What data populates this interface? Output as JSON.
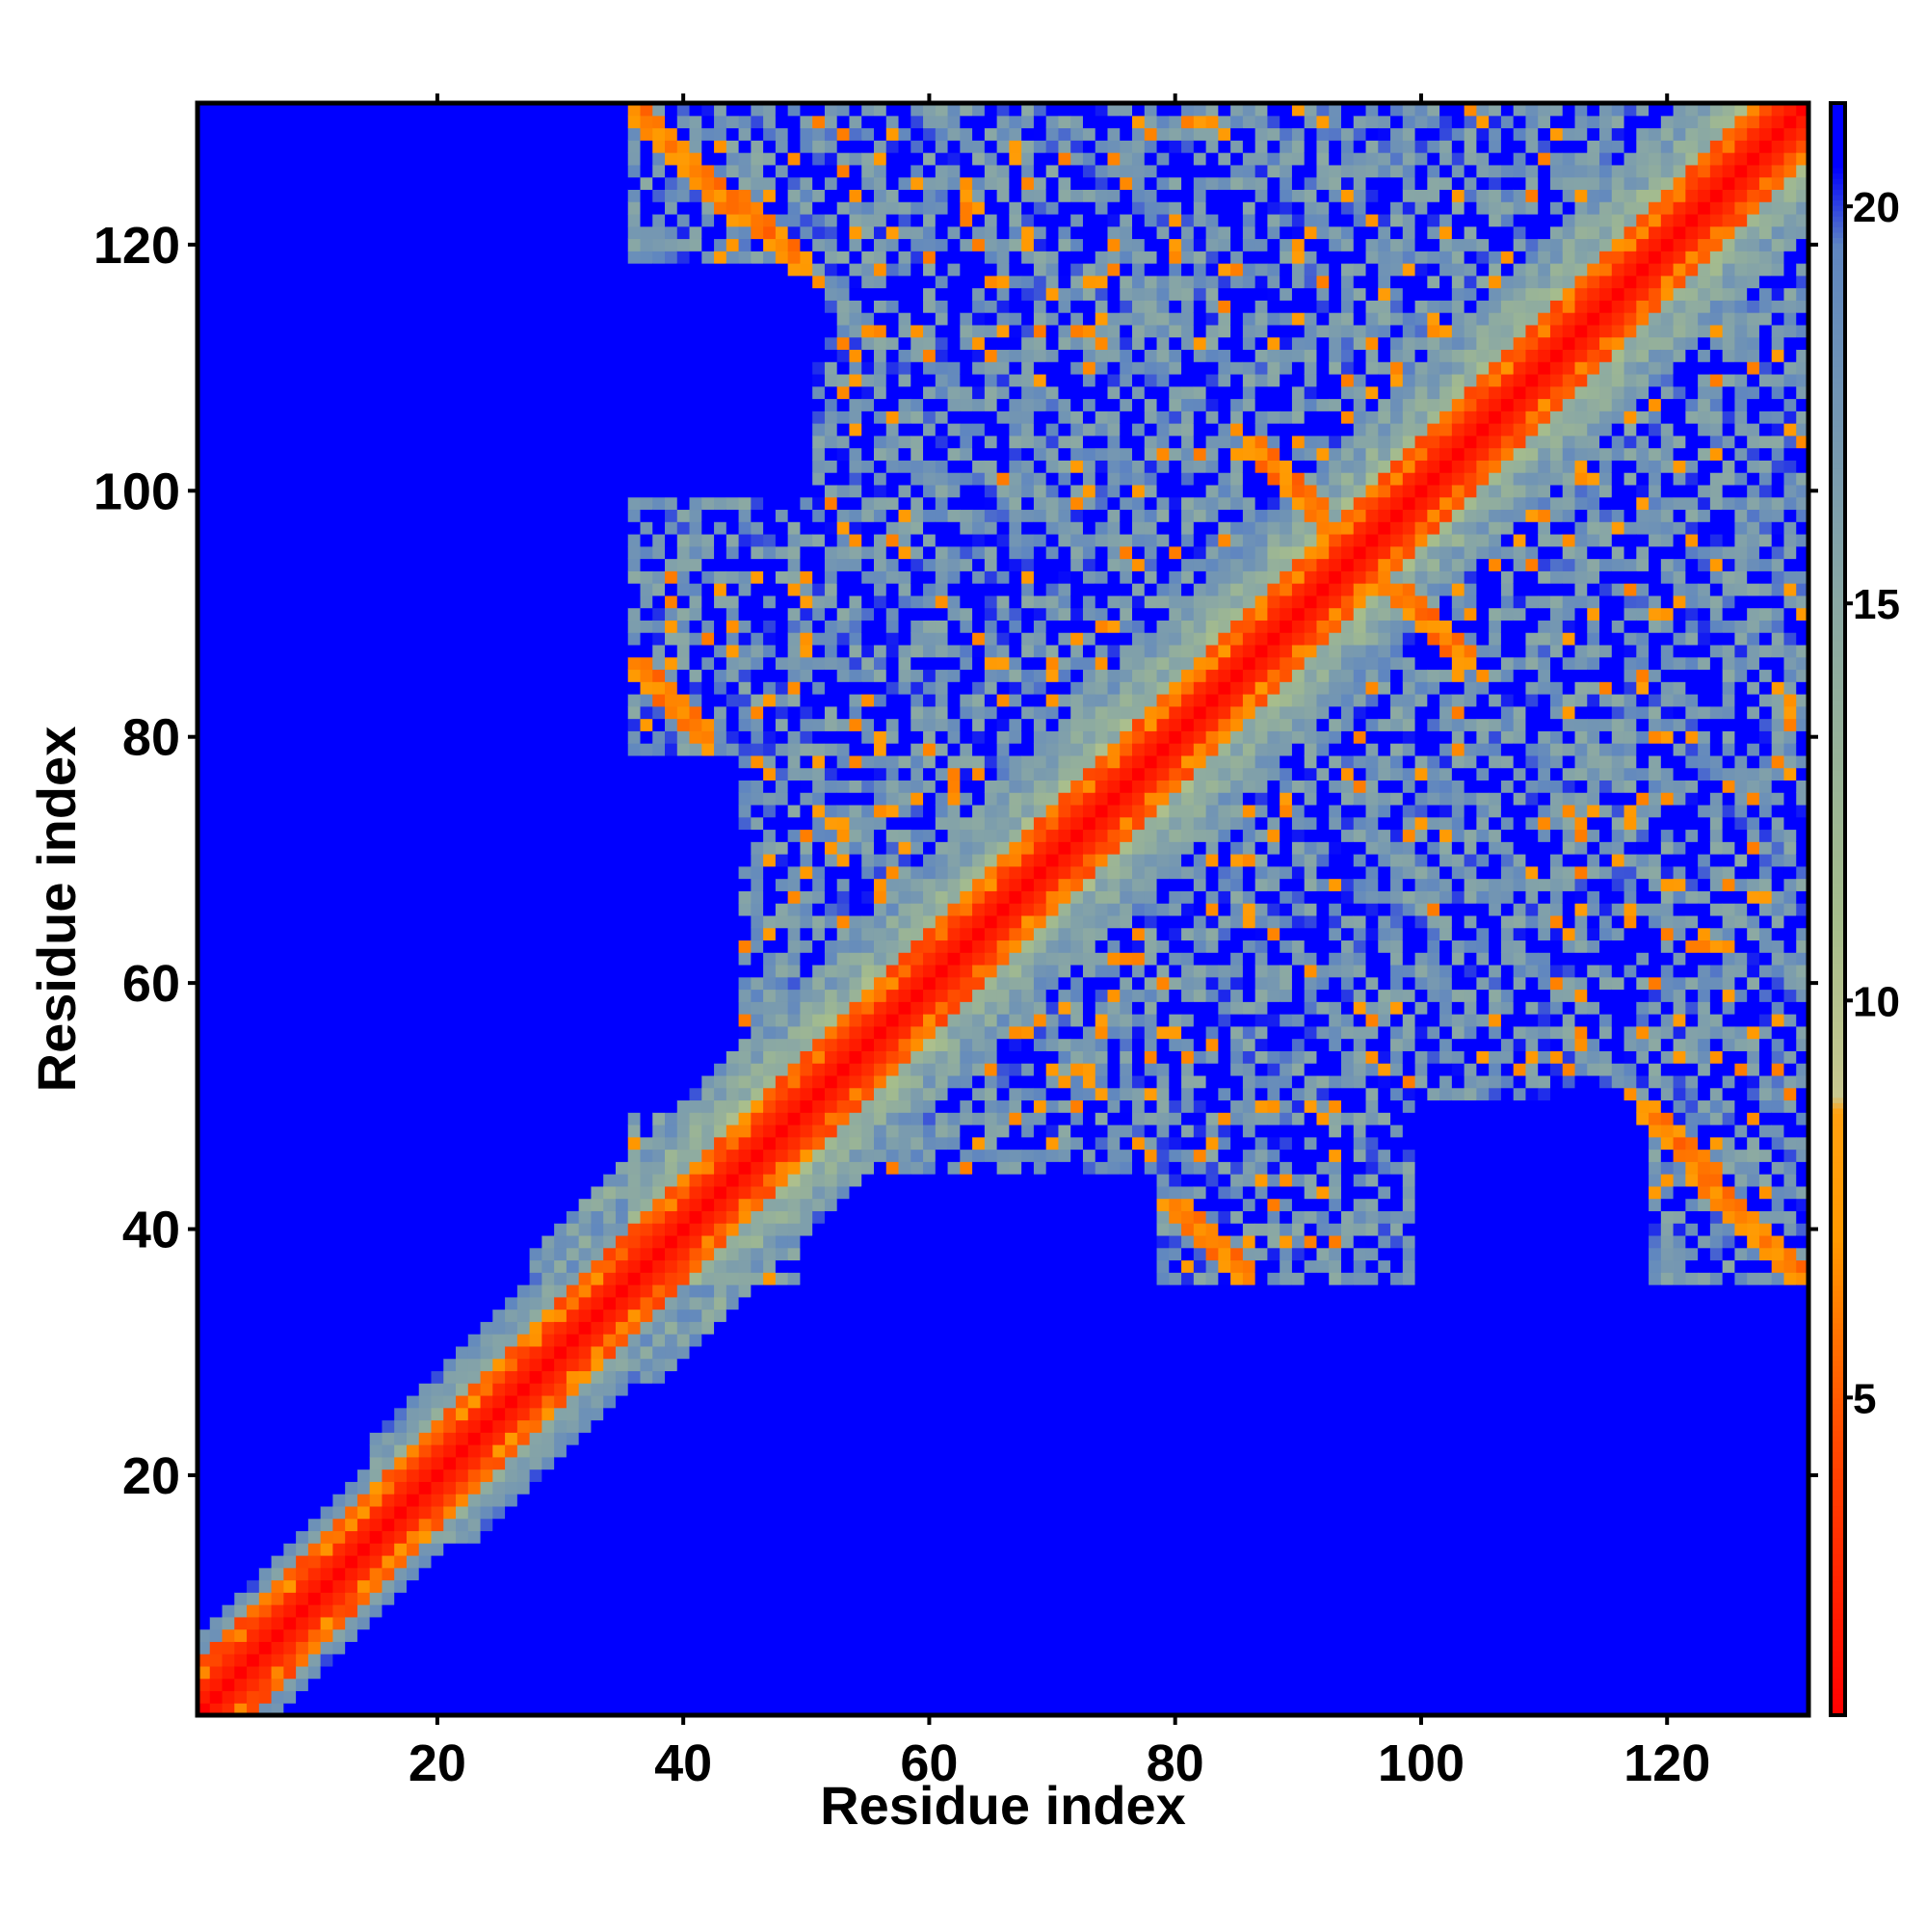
{
  "chart_data": {
    "type": "heatmap",
    "title": "",
    "xlabel": "Residue index",
    "ylabel": "Residue index",
    "n_residues": 131,
    "xlim": [
      1,
      131
    ],
    "ylim": [
      1,
      131
    ],
    "x_ticks": [
      20,
      40,
      60,
      80,
      100,
      120
    ],
    "x_tick_labels": [
      "20",
      "40",
      "60",
      "80",
      "100",
      "120"
    ],
    "y_ticks": [
      20,
      40,
      60,
      80,
      100,
      120
    ],
    "y_tick_labels": [
      "20",
      "40",
      "60",
      "80",
      "100",
      "120"
    ],
    "colorbar": {
      "range": [
        1,
        21.3
      ],
      "ticks": [
        5,
        10,
        15,
        20
      ],
      "tick_labels": [
        "5",
        "10",
        "15",
        "20"
      ],
      "colors": [
        {
          "value": 1,
          "color": "#ff0000"
        },
        {
          "value": 4.5,
          "color": "#ff4a00"
        },
        {
          "value": 7,
          "color": "#ff9900"
        },
        {
          "value": 8.6,
          "color": "#ffa010"
        },
        {
          "value": 8.8,
          "color": "#c8c890"
        },
        {
          "value": 11,
          "color": "#a6bd8c"
        },
        {
          "value": 15,
          "color": "#8aa8a4"
        },
        {
          "value": 19.5,
          "color": "#5f86c0"
        },
        {
          "value": 20.5,
          "color": "#0000ff"
        }
      ],
      "far_color": "#0000ff"
    },
    "grid": false,
    "description_of_values": "Pairwise residue distance matrix (symmetric). Diagonal band near 1-4 (red/orange); off-diagonal contact regions ~6-19 (orange/green/grey-blue); distances above ~20 shown as blue.",
    "contact_features": [
      {
        "kind": "diagonal_band",
        "range": [
          1,
          131
        ]
      },
      {
        "kind": "region",
        "x": [
          36,
          131
        ],
        "y": [
          36,
          131
        ],
        "level": "medium"
      },
      {
        "kind": "antiparallel_pair",
        "a": [
          36,
          44
        ],
        "b": [
          121,
          131
        ]
      },
      {
        "kind": "antiparallel_pair",
        "a": [
          36,
          42
        ],
        "b": [
          79,
          86
        ]
      },
      {
        "kind": "antiparallel_pair",
        "a": [
          79,
          86
        ],
        "b": [
          36,
          42
        ]
      },
      {
        "kind": "antiparallel_pair",
        "a": [
          121,
          131
        ],
        "b": [
          36,
          44
        ]
      },
      {
        "kind": "parallel_pair",
        "a": [
          21,
          28
        ],
        "b": [
          23,
          30
        ]
      }
    ]
  }
}
